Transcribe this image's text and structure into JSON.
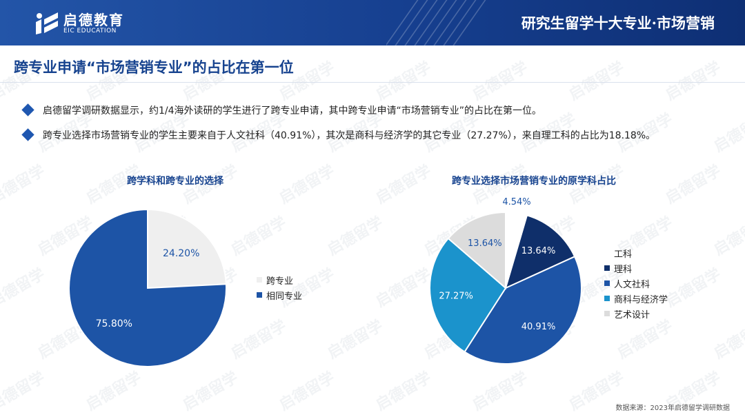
{
  "header": {
    "brand_cn": "启德教育",
    "brand_en": "EIC EDUCATION",
    "title": "研究生留学十大专业·市场营销"
  },
  "subtitle": "跨专业申请“市场营销专业”的占比在第一位",
  "bullets": [
    "启德留学调研数据显示，约1/4海外读研的学生进行了跨专业申请，其中跨专业申请“市场营销专业”的占比在第一位。",
    "跨专业选择市场营销专业的学生主要来自于人文社科（40.91%），其次是商科与经济学的其它专业（27.27%），来自理工科的占比为18.18%。"
  ],
  "watermark": "启德留学",
  "source": "数据来源：2023年启德留学调研数据",
  "chart_data": [
    {
      "type": "pie",
      "title": "跨学科和跨专业的选择",
      "slices": [
        {
          "name": "跨专业",
          "value": 24.2,
          "label": "24.20%",
          "color": "#efefef"
        },
        {
          "name": "相同专业",
          "value": 75.8,
          "label": "75.80%",
          "color": "#1d54a6"
        }
      ],
      "legend_position": "right"
    },
    {
      "type": "pie",
      "title": "跨专业选择市场营销专业的原学科占比",
      "slices": [
        {
          "name": "工科",
          "value": 4.54,
          "label": "4.54%",
          "color": "#ffffff"
        },
        {
          "name": "理科",
          "value": 13.64,
          "label": "13.64%",
          "color": "#0f2f6a"
        },
        {
          "name": "人文社科",
          "value": 40.91,
          "label": "40.91%",
          "color": "#1d54a6"
        },
        {
          "name": "商科与经济学",
          "value": 27.27,
          "label": "27.27%",
          "color": "#1b93cc"
        },
        {
          "name": "艺术设计",
          "value": 13.64,
          "label": "13.64%",
          "color": "#dcdcdc"
        }
      ],
      "legend_position": "right"
    }
  ]
}
